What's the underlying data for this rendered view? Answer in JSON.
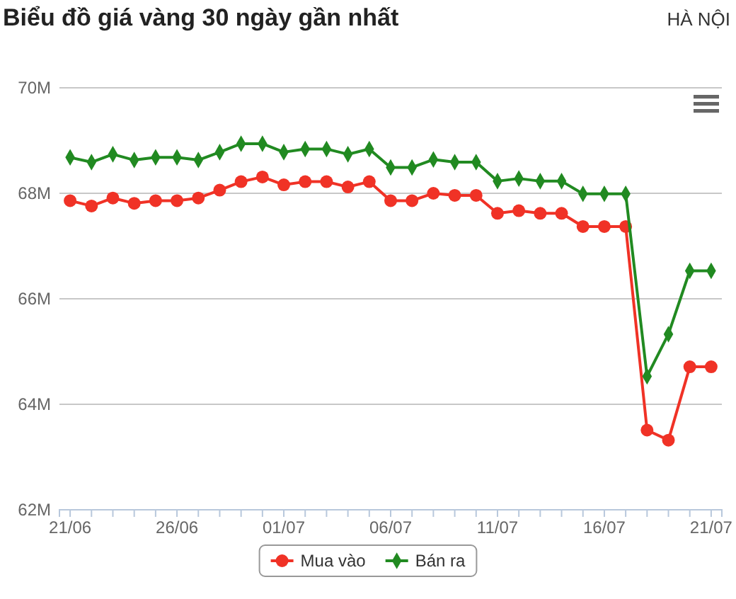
{
  "chart_data": {
    "type": "line",
    "title": "Biểu đồ giá vàng 30 ngày gần nhất",
    "subtitle": "HÀ NỘI",
    "categories": [
      "21/06",
      null,
      null,
      null,
      null,
      "26/06",
      null,
      null,
      null,
      null,
      "01/07",
      null,
      null,
      null,
      null,
      "06/07",
      null,
      null,
      null,
      null,
      "11/07",
      null,
      null,
      null,
      null,
      "16/07",
      null,
      null,
      null,
      null,
      "21/07"
    ],
    "series": [
      {
        "name": "Mua vào",
        "color": "#f03226",
        "marker": "circle",
        "values": [
          67.86,
          67.76,
          67.91,
          67.81,
          67.86,
          67.86,
          67.91,
          68.06,
          68.22,
          68.31,
          68.16,
          68.22,
          68.22,
          68.12,
          68.22,
          67.86,
          67.86,
          68.0,
          67.96,
          67.96,
          67.62,
          67.67,
          67.62,
          67.62,
          67.37,
          67.37,
          67.37,
          63.51,
          63.32,
          64.71,
          64.71
        ]
      },
      {
        "name": "Bán ra",
        "color": "#218a21",
        "marker": "diamond",
        "values": [
          68.68,
          68.59,
          68.74,
          68.63,
          68.68,
          68.68,
          68.63,
          68.78,
          68.94,
          68.94,
          68.78,
          68.84,
          68.84,
          68.74,
          68.84,
          68.49,
          68.49,
          68.64,
          68.59,
          68.59,
          68.23,
          68.28,
          68.23,
          68.23,
          67.99,
          67.99,
          67.99,
          64.53,
          65.33,
          66.53,
          66.53
        ]
      }
    ],
    "ylim": [
      62,
      70
    ],
    "yticks": [
      {
        "value": 62,
        "label": "62M"
      },
      {
        "value": 64,
        "label": "64M"
      },
      {
        "value": 66,
        "label": "66M"
      },
      {
        "value": 68,
        "label": "68M"
      },
      {
        "value": 70,
        "label": "70M"
      }
    ],
    "grid": "y",
    "legend": "bottom"
  }
}
